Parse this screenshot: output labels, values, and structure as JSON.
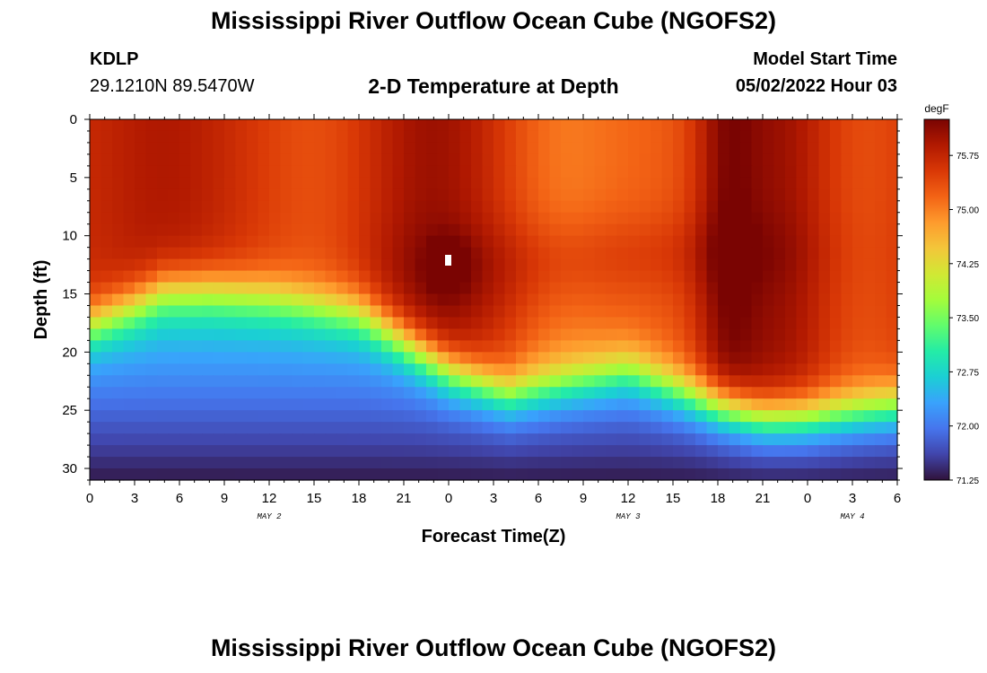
{
  "header": {
    "title": "Mississippi River Outflow Ocean Cube (NGOFS2)",
    "station": "KDLP",
    "coords": "29.1210N  89.5470W",
    "subtitle": "2-D Temperature at Depth",
    "start_label": "Model Start Time",
    "start_value": "05/02/2022 Hour 03"
  },
  "footer": {
    "title": "Mississippi River Outflow Ocean Cube (NGOFS2)"
  },
  "chart_data": {
    "type": "heatmap",
    "title": "2-D Temperature at Depth",
    "xlabel": "Forecast Time(Z)",
    "ylabel": "Depth (ft)",
    "x_range_hours": [
      0,
      54
    ],
    "y_range_ft": [
      0,
      31
    ],
    "x_ticks": [
      "0",
      "3",
      "6",
      "9",
      "12",
      "15",
      "18",
      "21",
      "0",
      "3",
      "6",
      "9",
      "12",
      "15",
      "18",
      "21",
      "0",
      "3",
      "6"
    ],
    "y_ticks": [
      "0",
      "5",
      "10",
      "15",
      "20",
      "25",
      "30"
    ],
    "date_labels": [
      {
        "text": "MAY 2",
        "hour": 12
      },
      {
        "text": "MAY 3",
        "hour": 36
      },
      {
        "text": "MAY 4",
        "hour": 51
      }
    ],
    "colorbar": {
      "unit": "degF",
      "min": 71.25,
      "max": 76.25,
      "ticks": [
        "71.25",
        "72.00",
        "72.75",
        "73.50",
        "74.25",
        "75.00",
        "75.75"
      ],
      "colors": [
        "#30123b",
        "#4145ab",
        "#4675ed",
        "#39a2fc",
        "#1bcfd4",
        "#24eca6",
        "#61fc6c",
        "#a4fc3b",
        "#d1e834",
        "#f3c63a",
        "#fe9b2d",
        "#f36315",
        "#d93806",
        "#b11901",
        "#7a0402"
      ]
    },
    "field_description": "Temperature degF vs forecast hour and depth",
    "thermocline_depth_ft": {
      "hours": [
        0,
        3,
        5,
        8,
        12,
        18,
        24,
        28,
        32,
        36,
        39,
        42,
        45,
        48,
        51,
        54
      ],
      "depth": [
        17.5,
        15.8,
        14.5,
        14.5,
        15.0,
        16.5,
        21.5,
        23.5,
        22.5,
        21.5,
        23.0,
        24.5,
        25.5,
        25.5,
        25.0,
        24.5
      ]
    }
  }
}
